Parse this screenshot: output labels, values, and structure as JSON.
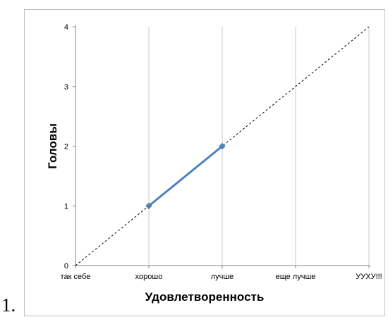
{
  "page": {
    "list_number": "1."
  },
  "chart_data": {
    "type": "line",
    "title": "",
    "xlabel": "Удовлетвoренность",
    "ylabel": "Головы",
    "categories": [
      "так себе",
      "хорошо",
      "лучше",
      "еще лучше",
      "УУХУ!!!"
    ],
    "ylim": [
      0,
      4
    ],
    "yticks": [
      0,
      1,
      2,
      3,
      4
    ],
    "grid": {
      "vertical": true,
      "horizontal": false
    },
    "legend": "none",
    "series": [
      {
        "x": [
          "хорошо",
          "лучше"
        ],
        "values": [
          1,
          2
        ],
        "color": "#4f81bd",
        "marker": "diamond"
      }
    ],
    "reference_line": {
      "from": [
        0,
        0
      ],
      "to": [
        4,
        4
      ],
      "style": "dashed",
      "color": "#000000"
    }
  }
}
